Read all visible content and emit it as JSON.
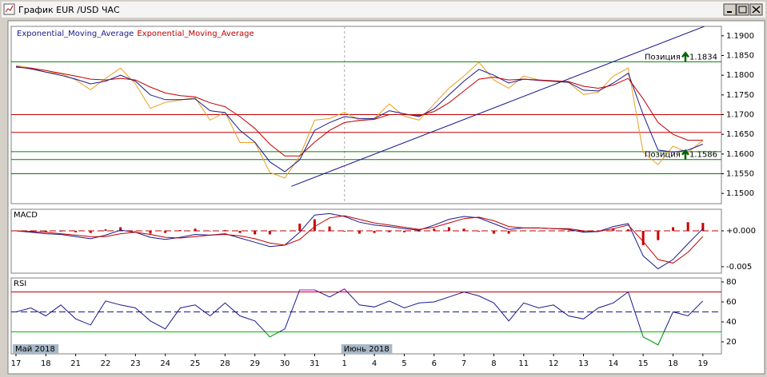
{
  "window": {
    "title": "График EUR /USD ЧАС"
  },
  "chart_data": [
    {
      "type": "line",
      "x": [
        0,
        0.5,
        1,
        1.5,
        2,
        2.5,
        3,
        3.5,
        4,
        4.5,
        5,
        5.5,
        6,
        6.5,
        7,
        7.5,
        8,
        8.5,
        9,
        9.5,
        10,
        10.5,
        11,
        11.5,
        12,
        12.5,
        13,
        13.5,
        14,
        14.5,
        15,
        15.5,
        16,
        16.5,
        17,
        17.5,
        18,
        18.5,
        19,
        19.5,
        20,
        20.5,
        21,
        21.5,
        22,
        22.5,
        23
      ],
      "xlim": [
        -0.16,
        23.62
      ],
      "ylim": [
        1.1474,
        1.1924
      ],
      "yticks": [
        {
          "value": 1.15,
          "label": "1.1500"
        },
        {
          "value": 1.155,
          "label": "1.1550"
        },
        {
          "value": 1.16,
          "label": "1.1600"
        },
        {
          "value": 1.165,
          "label": "1.1650"
        },
        {
          "value": 1.17,
          "label": "1.1700"
        },
        {
          "value": 1.175,
          "label": "1.1750"
        },
        {
          "value": 1.18,
          "label": "1.1800"
        },
        {
          "value": 1.185,
          "label": "1.1850"
        },
        {
          "value": 1.19,
          "label": "1.1900"
        }
      ],
      "series": [
        {
          "color": "#e8a020",
          "values": [
            1.1825,
            1.1818,
            1.1808,
            1.1804,
            1.1788,
            1.1763,
            1.1792,
            1.1818,
            1.1778,
            1.1716,
            1.1731,
            1.1737,
            1.1743,
            1.1686,
            1.1706,
            1.1629,
            1.1629,
            1.1553,
            1.1539,
            1.1594,
            1.1686,
            1.169,
            1.1706,
            1.1686,
            1.169,
            1.1727,
            1.1696,
            1.1686,
            1.1727,
            1.1767,
            1.1798,
            1.1833,
            1.1788,
            1.1767,
            1.1798,
            1.1788,
            1.1784,
            1.1782,
            1.1751,
            1.1757,
            1.1798,
            1.1818,
            1.1604,
            1.1573,
            1.162,
            1.1604,
            1.1635
          ]
        },
        {
          "name": "Exponential_Moving_Average",
          "color": "#1a1a8c",
          "values": [
            1.1822,
            1.1816,
            1.1808,
            1.18,
            1.179,
            1.1778,
            1.1785,
            1.18,
            1.1785,
            1.175,
            1.1738,
            1.1738,
            1.174,
            1.171,
            1.1705,
            1.166,
            1.163,
            1.158,
            1.1555,
            1.1585,
            1.166,
            1.168,
            1.1695,
            1.169,
            1.169,
            1.171,
            1.1702,
            1.1695,
            1.1715,
            1.175,
            1.1785,
            1.1815,
            1.18,
            1.178,
            1.179,
            1.1787,
            1.1785,
            1.1782,
            1.1762,
            1.176,
            1.178,
            1.1805,
            1.17,
            1.161,
            1.1605,
            1.161,
            1.1625
          ]
        },
        {
          "name": "Exponential_Moving_Average",
          "color": "#c00000",
          "values": [
            1.182,
            1.1818,
            1.1812,
            1.1805,
            1.1798,
            1.179,
            1.1788,
            1.1792,
            1.1788,
            1.177,
            1.1755,
            1.1748,
            1.1745,
            1.173,
            1.172,
            1.1695,
            1.1665,
            1.1625,
            1.1595,
            1.1595,
            1.163,
            1.166,
            1.168,
            1.1685,
            1.1688,
            1.17,
            1.17,
            1.1698,
            1.1708,
            1.173,
            1.176,
            1.179,
            1.1795,
            1.1788,
            1.179,
            1.1788,
            1.1786,
            1.1784,
            1.1772,
            1.1767,
            1.1775,
            1.1792,
            1.174,
            1.168,
            1.165,
            1.1635,
            1.1635
          ]
        }
      ],
      "levels": [
        {
          "value": 1.1834,
          "color": "#008000"
        },
        {
          "value": 1.17,
          "color": "#c00000"
        },
        {
          "value": 1.1655,
          "color": "#c00000"
        },
        {
          "value": 1.1606,
          "color": "#008000"
        },
        {
          "value": 1.1586,
          "color": "#008000"
        },
        {
          "value": 1.155,
          "color": "#008000"
        }
      ],
      "trend_lines": [
        {
          "x": [
            9.22,
            23.05
          ],
          "values": [
            1.1518,
            1.1924
          ],
          "color": "#1a1a8c"
        }
      ],
      "separators": [
        11
      ],
      "annotations": [
        {
          "text": "Позиция",
          "value": 1.1834,
          "color": "#006400"
        },
        {
          "text": "Позиция",
          "value": 1.1586,
          "color": "#006400"
        }
      ]
    },
    {
      "type": "line",
      "title": "MACD",
      "x": [
        0,
        0.5,
        1,
        1.5,
        2,
        2.5,
        3,
        3.5,
        4,
        4.5,
        5,
        5.5,
        6,
        6.5,
        7,
        7.5,
        8,
        8.5,
        9,
        9.5,
        10,
        10.5,
        11,
        11.5,
        12,
        12.5,
        13,
        13.5,
        14,
        14.5,
        15,
        15.5,
        16,
        16.5,
        17,
        17.5,
        18,
        18.5,
        19,
        19.5,
        20,
        20.5,
        21,
        21.5,
        22,
        22.5,
        23
      ],
      "xlim": [
        -0.16,
        23.62
      ],
      "ylim": [
        -0.0059,
        0.003
      ],
      "yticks": [
        {
          "value": -0.005,
          "label": "-0.005"
        },
        {
          "value": 0,
          "label": "+0.000"
        }
      ],
      "series": [
        {
          "type": "bar",
          "color": "#cc0000",
          "values": [
            0,
            -0.0001,
            -0.0002,
            -0.0001,
            -0.0002,
            -0.0003,
            0.0002,
            0.0005,
            0,
            -0.0004,
            -0.0003,
            0.0001,
            0.0003,
            0,
            0.0001,
            -0.0003,
            -0.0005,
            -0.0005,
            0,
            0.001,
            0.0016,
            0.0006,
            -0.0001,
            -0.0004,
            -0.0003,
            -0.0002,
            -0.0002,
            -0.0001,
            0.0003,
            0.0005,
            0.0003,
            -0.0001,
            -0.0004,
            -0.0004,
            0,
            0,
            0,
            -0.0001,
            -0.0002,
            0,
            0.0003,
            0.0002,
            -0.002,
            -0.0013,
            0.0005,
            0.0012,
            0.0011
          ]
        },
        {
          "color": "#1a1a8c",
          "values": [
            0,
            -0.0002,
            -0.0004,
            -0.0005,
            -0.0008,
            -0.0011,
            -0.0006,
            0.0001,
            -0.0002,
            -0.0009,
            -0.0012,
            -0.0009,
            -0.0005,
            -0.0006,
            -0.0004,
            -0.001,
            -0.0016,
            -0.0022,
            -0.002,
            -0.0002,
            0.0022,
            0.0024,
            0.002,
            0.0012,
            0.0008,
            0.0006,
            0.0003,
            0.0001,
            0.0008,
            0.0016,
            0.002,
            0.0018,
            0.001,
            0.0002,
            0.0004,
            0.0004,
            0.0003,
            0.0002,
            -0.0002,
            -0.0001,
            0.0006,
            0.001,
            -0.0035,
            -0.0053,
            -0.004,
            -0.0018,
            0.0003
          ]
        },
        {
          "color": "#c00000",
          "values": [
            0,
            -0.0001,
            -0.0002,
            -0.0004,
            -0.0006,
            -0.0008,
            -0.0008,
            -0.0004,
            -0.0002,
            -0.0005,
            -0.0009,
            -0.001,
            -0.0008,
            -0.0006,
            -0.0005,
            -0.0007,
            -0.0011,
            -0.0017,
            -0.002,
            -0.0012,
            0.0006,
            0.0018,
            0.0021,
            0.0016,
            0.0011,
            0.0008,
            0.0005,
            0.0002,
            0.0005,
            0.0011,
            0.0017,
            0.0019,
            0.0014,
            0.0006,
            0.0004,
            0.0004,
            0.0003,
            0.0003,
            0,
            -0.0001,
            0.0003,
            0.0008,
            -0.0015,
            -0.004,
            -0.0045,
            -0.003,
            -0.0008
          ]
        }
      ],
      "levels": [
        {
          "value": 0,
          "color": "#c00000",
          "style": "dashed"
        }
      ]
    },
    {
      "type": "line",
      "title": "RSI",
      "x": [
        0,
        0.5,
        1,
        1.5,
        2,
        2.5,
        3,
        3.5,
        4,
        4.5,
        5,
        5.5,
        6,
        6.5,
        7,
        7.5,
        8,
        8.5,
        9,
        9.5,
        10,
        10.5,
        11,
        11.5,
        12,
        12.5,
        13,
        13.5,
        14,
        14.5,
        15,
        15.5,
        16,
        16.5,
        17,
        17.5,
        18,
        18.5,
        19,
        19.5,
        20,
        20.5,
        21,
        21.5,
        22,
        22.5,
        23
      ],
      "xlim": [
        -0.16,
        23.62
      ],
      "ylim": [
        8,
        84
      ],
      "yticks": [
        20,
        40,
        60,
        80
      ],
      "series": [
        {
          "color": "#1a1a8c",
          "overbought_color": "#c000c0",
          "oversold_color": "#00b000",
          "values": [
            50,
            54,
            46,
            57,
            43,
            37,
            61,
            57,
            54,
            41,
            33,
            54,
            57,
            46,
            59,
            46,
            41,
            25,
            33,
            72,
            72,
            65,
            73,
            57,
            55,
            61,
            54,
            59,
            60,
            65,
            70,
            66,
            59,
            41,
            59,
            54,
            57,
            46,
            43,
            54,
            59,
            70,
            25,
            17,
            50,
            46,
            61
          ]
        }
      ],
      "levels": [
        {
          "value": 70,
          "color": "#c00000"
        },
        {
          "value": 50,
          "color": "#1a1a8c",
          "style": "dashed"
        },
        {
          "value": 30,
          "color": "#00c000"
        }
      ],
      "xticks": [
        {
          "value": 0,
          "label": "17"
        },
        {
          "value": 1,
          "label": "18"
        },
        {
          "value": 2,
          "label": "21"
        },
        {
          "value": 3,
          "label": "22"
        },
        {
          "value": 4,
          "label": "23"
        },
        {
          "value": 5,
          "label": "24"
        },
        {
          "value": 6,
          "label": "25"
        },
        {
          "value": 7,
          "label": "28"
        },
        {
          "value": 8,
          "label": "29"
        },
        {
          "value": 9,
          "label": "30"
        },
        {
          "value": 10,
          "label": "31"
        },
        {
          "value": 11,
          "label": "1"
        },
        {
          "value": 12,
          "label": "4"
        },
        {
          "value": 13,
          "label": "5"
        },
        {
          "value": 14,
          "label": "6"
        },
        {
          "value": 15,
          "label": "7"
        },
        {
          "value": 16,
          "label": "8"
        },
        {
          "value": 17,
          "label": "11"
        },
        {
          "value": 18,
          "label": "12"
        },
        {
          "value": 19,
          "label": "13"
        },
        {
          "value": 20,
          "label": "14"
        },
        {
          "value": 21,
          "label": "15"
        },
        {
          "value": 22,
          "label": "18"
        },
        {
          "value": 23,
          "label": "19"
        }
      ],
      "periods": [
        {
          "value": 0,
          "label": "Май 2018"
        },
        {
          "value": 11,
          "label": "Июнь 2018"
        }
      ]
    }
  ]
}
